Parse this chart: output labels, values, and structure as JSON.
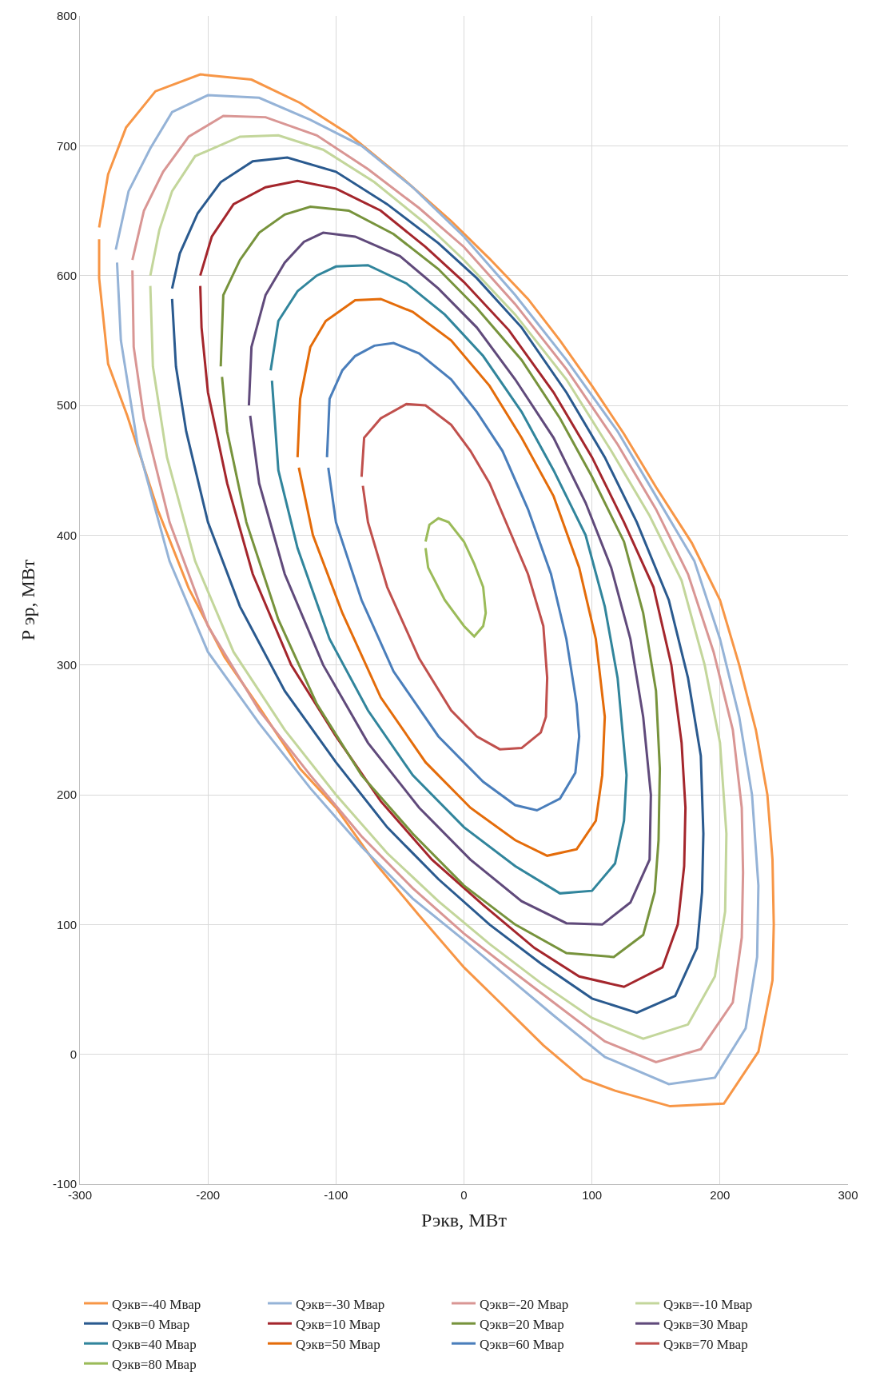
{
  "chart_data": {
    "type": "line",
    "xlabel": "Рэкв, МВт",
    "ylabel": "Р эр, МВт",
    "xlim": [
      -300,
      300
    ],
    "xticks": [
      -300,
      -200,
      -100,
      0,
      100,
      200,
      300
    ],
    "ylim": [
      -100,
      800
    ],
    "yticks": [
      -100,
      0,
      100,
      200,
      300,
      400,
      500,
      600,
      700,
      800
    ],
    "grid": true,
    "legend": "bottom",
    "marker": "none",
    "line_style": "solid",
    "series": [
      {
        "name": "Qэкв=-40 Мвар",
        "color": "#f79646",
        "x": [
          -285,
          -278,
          -264,
          -241,
          -206,
          -166,
          -128,
          -90,
          -48,
          -10,
          20,
          50,
          75,
          100,
          125,
          150,
          178,
          200,
          215,
          228,
          237,
          241,
          242,
          241,
          230,
          203,
          161,
          118,
          93,
          62,
          28,
          0,
          -35,
          -69,
          -100,
          -128,
          -159,
          -187,
          -215,
          -239,
          -263,
          -278,
          -285,
          -285
        ],
        "values": [
          637,
          678,
          714,
          742,
          755,
          751,
          733,
          709,
          675,
          642,
          613,
          582,
          550,
          515,
          478,
          437,
          394,
          350,
          300,
          250,
          200,
          150,
          100,
          57,
          2,
          -38,
          -40,
          -28,
          -19,
          7,
          40,
          67,
          107,
          147,
          190,
          220,
          266,
          306,
          359,
          419,
          492,
          532,
          598,
          628
        ]
      },
      {
        "name": "Qэкв=-30 Мвар",
        "color": "#95b3d7",
        "x": [
          -272,
          -262,
          -245,
          -228,
          -200,
          -160,
          -120,
          -80,
          -40,
          0,
          40,
          80,
          120,
          150,
          180,
          200,
          215,
          225,
          230,
          229,
          220,
          196,
          160,
          110,
          70,
          30,
          0,
          -40,
          -80,
          -120,
          -160,
          -200,
          -230,
          -255,
          -268,
          -271
        ],
        "values": [
          620,
          665,
          698,
          726,
          739,
          737,
          720,
          700,
          668,
          630,
          585,
          535,
          480,
          430,
          380,
          320,
          260,
          200,
          130,
          75,
          20,
          -18,
          -23,
          -2,
          30,
          63,
          88,
          120,
          160,
          205,
          255,
          310,
          380,
          470,
          550,
          610
        ]
      },
      {
        "name": "Qэкв=-20 Мвар",
        "color": "#d99694",
        "x": [
          -259,
          -250,
          -235,
          -215,
          -188,
          -155,
          -115,
          -75,
          -35,
          0,
          40,
          80,
          120,
          150,
          175,
          195,
          210,
          217,
          218,
          217,
          210,
          185,
          150,
          110,
          70,
          30,
          0,
          -40,
          -80,
          -120,
          -160,
          -200,
          -230,
          -250,
          -258,
          -259
        ],
        "values": [
          612,
          650,
          680,
          707,
          723,
          722,
          708,
          682,
          652,
          622,
          578,
          528,
          470,
          420,
          370,
          310,
          250,
          190,
          140,
          90,
          40,
          4,
          -6,
          10,
          40,
          70,
          93,
          128,
          168,
          215,
          265,
          330,
          410,
          490,
          545,
          604
        ]
      },
      {
        "name": "Qэкв=-10 Мвар",
        "color": "#c3d69b",
        "x": [
          -245,
          -238,
          -228,
          -210,
          -175,
          -145,
          -110,
          -70,
          -30,
          0,
          40,
          80,
          115,
          145,
          170,
          188,
          200,
          205,
          204,
          196,
          175,
          140,
          100,
          60,
          20,
          -20,
          -60,
          -100,
          -140,
          -180,
          -210,
          -232,
          -243,
          -245
        ],
        "values": [
          600,
          635,
          665,
          692,
          707,
          708,
          697,
          672,
          640,
          612,
          570,
          520,
          465,
          415,
          365,
          300,
          240,
          170,
          110,
          60,
          23,
          12,
          28,
          55,
          85,
          118,
          155,
          200,
          250,
          310,
          380,
          460,
          530,
          592
        ]
      },
      {
        "name": "Qэкв=0 Мвар",
        "color": "#2a5a8f",
        "x": [
          -228,
          -222,
          -208,
          -190,
          -165,
          -138,
          -100,
          -60,
          -20,
          10,
          45,
          80,
          110,
          135,
          160,
          175,
          185,
          187,
          186,
          182,
          165,
          135,
          100,
          60,
          20,
          -20,
          -60,
          -100,
          -140,
          -175,
          -200,
          -217,
          -225,
          -228
        ],
        "values": [
          590,
          617,
          648,
          672,
          688,
          691,
          680,
          655,
          625,
          598,
          560,
          510,
          460,
          410,
          350,
          290,
          230,
          170,
          125,
          82,
          45,
          32,
          43,
          70,
          100,
          135,
          175,
          225,
          280,
          345,
          410,
          480,
          530,
          582
        ]
      },
      {
        "name": "Qэкв=10 Мвар",
        "color": "#a4262c",
        "x": [
          -206,
          -197,
          -180,
          -155,
          -130,
          -100,
          -65,
          -30,
          0,
          35,
          70,
          100,
          125,
          148,
          162,
          170,
          173,
          172,
          167,
          155,
          125,
          90,
          55,
          15,
          -25,
          -65,
          -100,
          -135,
          -165,
          -185,
          -200,
          -205,
          -206
        ],
        "values": [
          600,
          630,
          655,
          668,
          673,
          667,
          650,
          622,
          595,
          558,
          510,
          460,
          410,
          360,
          300,
          240,
          190,
          145,
          100,
          67,
          52,
          60,
          82,
          115,
          150,
          195,
          245,
          300,
          370,
          440,
          510,
          560,
          592
        ]
      },
      {
        "name": "Qэкв=20 Мвар",
        "color": "#77933c",
        "x": [
          -190,
          -188,
          -175,
          -160,
          -140,
          -120,
          -90,
          -55,
          -20,
          10,
          45,
          75,
          100,
          125,
          140,
          150,
          153,
          152,
          149,
          140,
          117,
          80,
          40,
          0,
          -40,
          -80,
          -115,
          -145,
          -170,
          -185,
          -189
        ],
        "values": [
          530,
          585,
          612,
          633,
          647,
          653,
          650,
          632,
          605,
          575,
          535,
          490,
          445,
          395,
          340,
          280,
          220,
          165,
          125,
          92,
          75,
          78,
          100,
          130,
          170,
          215,
          270,
          335,
          410,
          480,
          522
        ]
      },
      {
        "name": "Qэкв=30 Мвар",
        "color": "#604a7b",
        "x": [
          -168,
          -166,
          -155,
          -140,
          -125,
          -110,
          -85,
          -50,
          -20,
          10,
          40,
          70,
          95,
          115,
          130,
          140,
          146,
          145,
          130,
          108,
          80,
          45,
          5,
          -35,
          -75,
          -110,
          -140,
          -160,
          -167
        ],
        "values": [
          500,
          545,
          585,
          610,
          626,
          633,
          630,
          615,
          590,
          560,
          520,
          475,
          425,
          375,
          320,
          260,
          200,
          150,
          117,
          100,
          101,
          118,
          150,
          190,
          240,
          300,
          370,
          440,
          492
        ]
      },
      {
        "name": "Qэкв=40 Мвар",
        "color": "#31859c",
        "x": [
          -151,
          -145,
          -130,
          -115,
          -100,
          -75,
          -45,
          -15,
          15,
          45,
          70,
          95,
          110,
          120,
          127,
          125,
          118,
          100,
          75,
          40,
          0,
          -40,
          -75,
          -105,
          -130,
          -145,
          -150
        ],
        "values": [
          527,
          565,
          588,
          600,
          607,
          608,
          594,
          570,
          538,
          495,
          450,
          400,
          345,
          290,
          215,
          180,
          147,
          126,
          124,
          145,
          175,
          215,
          265,
          320,
          390,
          450,
          519
        ]
      },
      {
        "name": "Qэкв=50 Мвар",
        "color": "#e46c0a",
        "x": [
          -130,
          -128,
          -120,
          -108,
          -85,
          -65,
          -40,
          -10,
          20,
          45,
          70,
          90,
          103,
          110,
          108,
          103,
          88,
          65,
          40,
          5,
          -30,
          -65,
          -95,
          -118,
          -129
        ],
        "values": [
          460,
          505,
          545,
          565,
          581,
          582,
          572,
          550,
          515,
          475,
          430,
          375,
          320,
          260,
          215,
          180,
          158,
          153,
          165,
          190,
          225,
          275,
          340,
          400,
          452
        ]
      },
      {
        "name": "Qэкв=60 Мвар",
        "color": "#4a7ebb",
        "x": [
          -107,
          -105,
          -95,
          -85,
          -70,
          -55,
          -35,
          -10,
          10,
          30,
          50,
          68,
          80,
          88,
          90,
          87,
          75,
          57,
          40,
          15,
          -20,
          -55,
          -80,
          -100,
          -106
        ],
        "values": [
          460,
          505,
          527,
          538,
          546,
          548,
          540,
          520,
          495,
          465,
          420,
          370,
          320,
          270,
          245,
          217,
          197,
          188,
          192,
          210,
          245,
          295,
          350,
          410,
          452
        ]
      },
      {
        "name": "Qэкв=70 Мвар",
        "color": "#c0504d",
        "x": [
          -80,
          -78,
          -65,
          -45,
          -30,
          -10,
          5,
          20,
          35,
          50,
          62,
          65,
          64,
          60,
          45,
          28,
          10,
          -10,
          -35,
          -60,
          -75,
          -79
        ],
        "values": [
          445,
          475,
          490,
          501,
          500,
          485,
          465,
          440,
          405,
          370,
          330,
          290,
          260,
          248,
          236,
          235,
          245,
          265,
          305,
          360,
          410,
          438
        ]
      },
      {
        "name": "Qэкв=80 Мвар",
        "color": "#9bbb59",
        "x": [
          -30,
          -27,
          -20,
          -12,
          0,
          8,
          15,
          17,
          15,
          8,
          0,
          -15,
          -28,
          -30
        ],
        "values": [
          395,
          408,
          413,
          410,
          395,
          378,
          360,
          340,
          330,
          322,
          330,
          350,
          375,
          390
        ]
      }
    ]
  }
}
